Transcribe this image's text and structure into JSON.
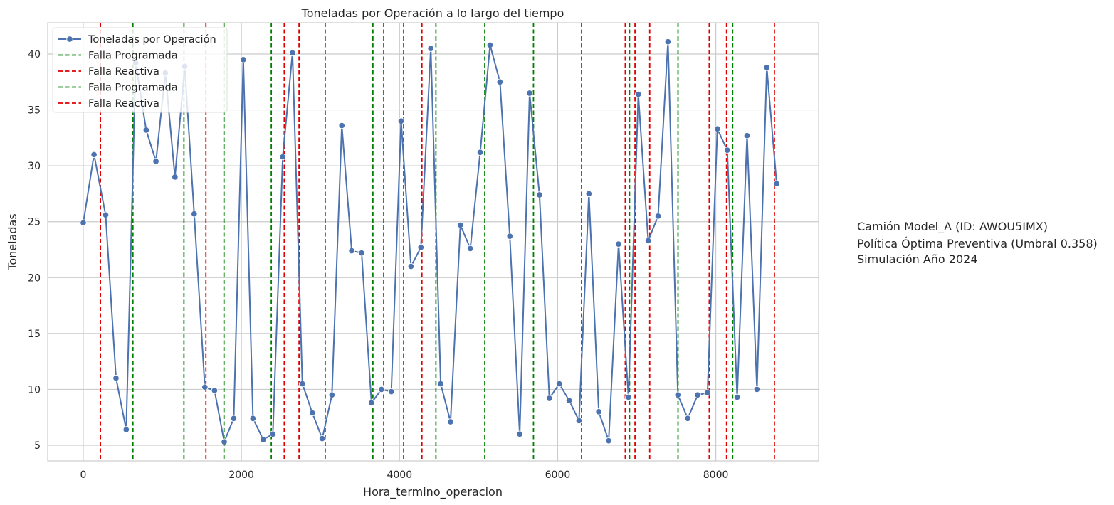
{
  "chart_data": {
    "type": "line",
    "title": "Toneladas por Operación a lo largo del tiempo",
    "xlabel": "Hora_termino_operacion",
    "ylabel": "Toneladas",
    "xlim": [
      -450,
      9300
    ],
    "ylim": [
      3.6,
      42.8
    ],
    "xticks": [
      0,
      2000,
      4000,
      6000,
      8000
    ],
    "yticks": [
      5,
      10,
      15,
      20,
      25,
      30,
      35,
      40
    ],
    "grid": true,
    "legend_position": "top-left",
    "series": [
      {
        "name": "Toneladas por Operación",
        "color": "#4c72b0",
        "marker": "circle",
        "x": [
          0,
          136,
          283,
          414,
          543,
          663,
          796,
          919,
          1038,
          1160,
          1283,
          1403,
          1538,
          1660,
          1783,
          1903,
          2024,
          2146,
          2276,
          2398,
          2523,
          2646,
          2771,
          2896,
          3022,
          3145,
          3270,
          3395,
          3520,
          3645,
          3772,
          3896,
          4020,
          4145,
          4270,
          4395,
          4520,
          4645,
          4770,
          4895,
          5020,
          5145,
          5270,
          5395,
          5520,
          5645,
          5770,
          5895,
          6020,
          6145,
          6270,
          6395,
          6520,
          6645,
          6770,
          6895,
          7020,
          7145,
          7270,
          7395,
          7520,
          7645,
          7770,
          7895,
          8020,
          8145,
          8270,
          8395,
          8520,
          8645,
          8770
        ],
        "y": [
          24.9,
          31.0,
          25.6,
          11.0,
          6.4,
          39.2,
          33.2,
          30.4,
          38.3,
          29.0,
          38.9,
          25.7,
          10.2,
          9.9,
          5.3,
          7.4,
          39.5,
          7.4,
          5.5,
          6.0,
          30.8,
          40.1,
          10.5,
          7.9,
          5.6,
          9.5,
          33.6,
          22.4,
          22.2,
          8.8,
          10.0,
          9.8,
          34.0,
          21.0,
          22.7,
          40.5,
          10.5,
          7.1,
          24.7,
          22.6,
          31.2,
          40.8,
          37.5,
          23.7,
          6.0,
          36.5,
          27.4,
          9.2,
          10.5,
          9.0,
          7.2,
          27.5,
          8.0,
          5.4,
          23.0,
          9.3,
          36.4,
          23.3,
          25.5,
          41.1,
          9.5,
          7.4,
          9.5,
          9.7,
          33.3,
          31.4,
          9.3,
          32.7,
          10.0,
          38.8,
          28.4
        ]
      }
    ],
    "vlines": [
      {
        "name": "Falla Reactiva",
        "color": "#e00000",
        "style": "dashed",
        "x": [
          217,
          1551,
          2542,
          2729,
          3800,
          4052,
          4283,
          6855,
          6978,
          7164,
          7917,
          8136,
          8741
        ]
      },
      {
        "name": "Falla Programada",
        "color": "#008000",
        "style": "dashed",
        "x": [
          628,
          1273,
          1780,
          2378,
          3060,
          3663,
          4460,
          5078,
          5694,
          6302,
          6909,
          7522,
          8213
        ]
      }
    ],
    "legend_entries": [
      {
        "label": "Toneladas por Operación",
        "color": "#4c72b0",
        "kind": "line-marker"
      },
      {
        "label": "Falla Programada",
        "color": "#008000",
        "kind": "dashed"
      },
      {
        "label": "Falla Reactiva",
        "color": "#e00000",
        "kind": "dashed"
      },
      {
        "label": "Falla Programada",
        "color": "#008000",
        "kind": "dashed"
      },
      {
        "label": "Falla Reactiva",
        "color": "#e00000",
        "kind": "dashed"
      }
    ]
  },
  "side_text": {
    "line1": "Camión Model_A (ID: AWOU5IMX)",
    "line2": "Política Óptima Preventiva (Umbral 0.358)",
    "line3": "Simulación Año 2024"
  }
}
